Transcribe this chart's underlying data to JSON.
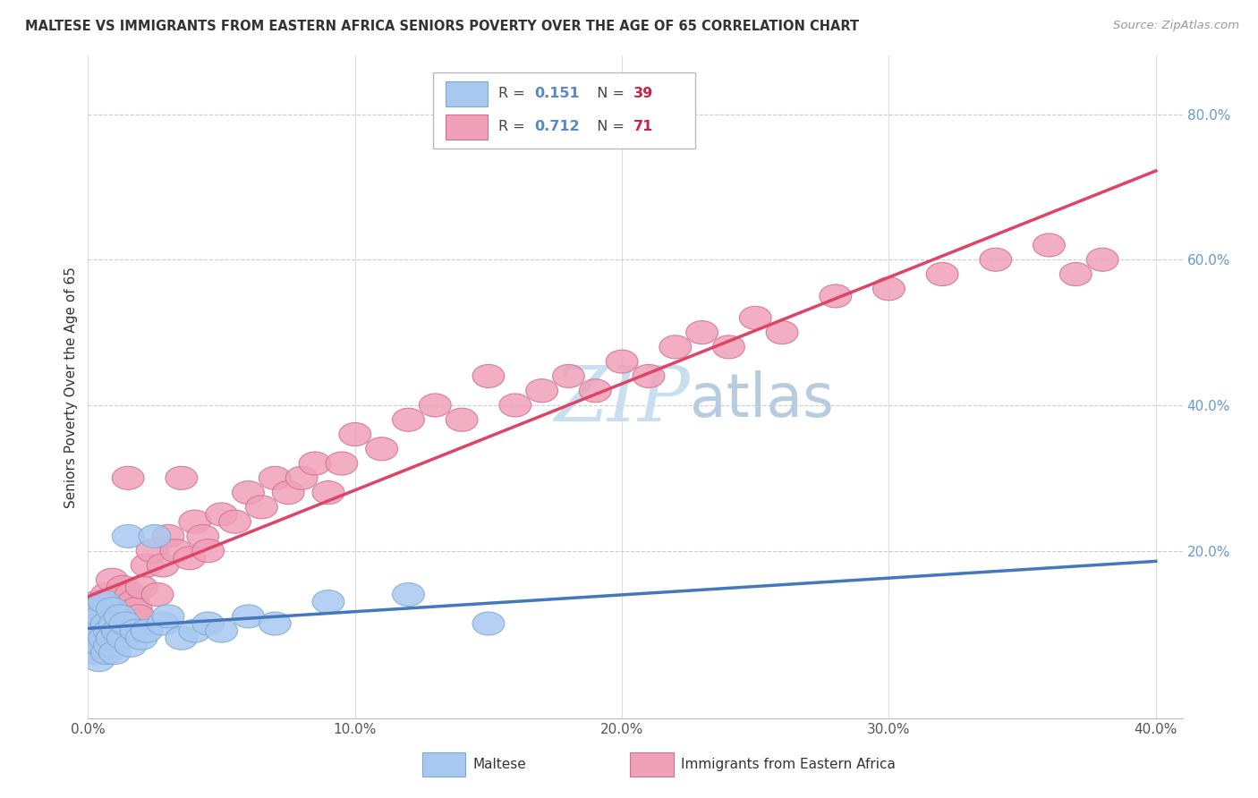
{
  "title": "MALTESE VS IMMIGRANTS FROM EASTERN AFRICA SENIORS POVERTY OVER THE AGE OF 65 CORRELATION CHART",
  "source": "Source: ZipAtlas.com",
  "ylabel": "Seniors Poverty Over the Age of 65",
  "xlim": [
    0.0,
    0.42
  ],
  "ylim": [
    -0.02,
    0.88
  ],
  "plot_xlim": [
    0.0,
    0.4
  ],
  "plot_ylim": [
    0.0,
    0.85
  ],
  "xtick_labels": [
    "0.0%",
    "",
    "",
    "",
    "",
    "10.0%",
    "",
    "",
    "",
    "",
    "20.0%",
    "",
    "",
    "",
    "",
    "30.0%",
    "",
    "",
    "",
    "",
    "40.0%"
  ],
  "xtick_vals": [
    0.0,
    0.02,
    0.04,
    0.06,
    0.08,
    0.1,
    0.12,
    0.14,
    0.16,
    0.18,
    0.2,
    0.22,
    0.24,
    0.26,
    0.28,
    0.3,
    0.32,
    0.34,
    0.36,
    0.38,
    0.4
  ],
  "ytick_labels_right": [
    "20.0%",
    "40.0%",
    "60.0%",
    "80.0%"
  ],
  "ytick_vals_right": [
    0.2,
    0.4,
    0.6,
    0.8
  ],
  "maltese_color": "#a8c8f0",
  "maltese_edge_color": "#7aaad0",
  "eastern_africa_color": "#f0a0b8",
  "eastern_africa_edge_color": "#d07090",
  "maltese_line_color": "#4477bb",
  "eastern_africa_line_color": "#dd4466",
  "watermark_color": "#c8dff0",
  "R_maltese": 0.151,
  "N_maltese": 39,
  "R_eastern": 0.712,
  "N_eastern": 71,
  "maltese_scatter_x": [
    0.001,
    0.002,
    0.003,
    0.003,
    0.004,
    0.004,
    0.005,
    0.005,
    0.006,
    0.006,
    0.007,
    0.007,
    0.008,
    0.008,
    0.009,
    0.009,
    0.01,
    0.01,
    0.011,
    0.012,
    0.013,
    0.014,
    0.015,
    0.016,
    0.018,
    0.02,
    0.022,
    0.025,
    0.028,
    0.03,
    0.035,
    0.04,
    0.045,
    0.05,
    0.06,
    0.07,
    0.09,
    0.12,
    0.15
  ],
  "maltese_scatter_y": [
    0.08,
    0.1,
    0.06,
    0.12,
    0.05,
    0.09,
    0.07,
    0.11,
    0.08,
    0.13,
    0.06,
    0.1,
    0.07,
    0.09,
    0.08,
    0.12,
    0.06,
    0.1,
    0.09,
    0.11,
    0.08,
    0.1,
    0.22,
    0.07,
    0.09,
    0.08,
    0.09,
    0.22,
    0.1,
    0.11,
    0.08,
    0.09,
    0.1,
    0.09,
    0.11,
    0.1,
    0.13,
    0.14,
    0.1
  ],
  "eastern_africa_scatter_x": [
    0.001,
    0.002,
    0.003,
    0.004,
    0.004,
    0.005,
    0.005,
    0.006,
    0.006,
    0.007,
    0.007,
    0.008,
    0.008,
    0.009,
    0.009,
    0.01,
    0.011,
    0.012,
    0.013,
    0.014,
    0.015,
    0.016,
    0.017,
    0.018,
    0.019,
    0.02,
    0.022,
    0.024,
    0.026,
    0.028,
    0.03,
    0.033,
    0.035,
    0.038,
    0.04,
    0.043,
    0.045,
    0.05,
    0.055,
    0.06,
    0.065,
    0.07,
    0.075,
    0.08,
    0.085,
    0.09,
    0.095,
    0.1,
    0.11,
    0.12,
    0.13,
    0.14,
    0.15,
    0.16,
    0.17,
    0.18,
    0.19,
    0.2,
    0.21,
    0.22,
    0.23,
    0.24,
    0.25,
    0.26,
    0.28,
    0.3,
    0.32,
    0.34,
    0.36,
    0.37,
    0.38
  ],
  "eastern_africa_scatter_y": [
    0.07,
    0.09,
    0.06,
    0.1,
    0.13,
    0.08,
    0.12,
    0.07,
    0.11,
    0.09,
    0.14,
    0.08,
    0.13,
    0.1,
    0.16,
    0.09,
    0.11,
    0.12,
    0.15,
    0.1,
    0.3,
    0.14,
    0.13,
    0.12,
    0.11,
    0.15,
    0.18,
    0.2,
    0.14,
    0.18,
    0.22,
    0.2,
    0.3,
    0.19,
    0.24,
    0.22,
    0.2,
    0.25,
    0.24,
    0.28,
    0.26,
    0.3,
    0.28,
    0.3,
    0.32,
    0.28,
    0.32,
    0.36,
    0.34,
    0.38,
    0.4,
    0.38,
    0.44,
    0.4,
    0.42,
    0.44,
    0.42,
    0.46,
    0.44,
    0.48,
    0.5,
    0.48,
    0.52,
    0.5,
    0.55,
    0.56,
    0.58,
    0.6,
    0.62,
    0.58,
    0.6
  ],
  "bottom_legend_items": [
    {
      "label": "Maltese",
      "color": "#a8c8f0",
      "edge": "#7aaad0"
    },
    {
      "label": "Immigrants from Eastern Africa",
      "color": "#f0a0b8",
      "edge": "#d07090"
    }
  ]
}
